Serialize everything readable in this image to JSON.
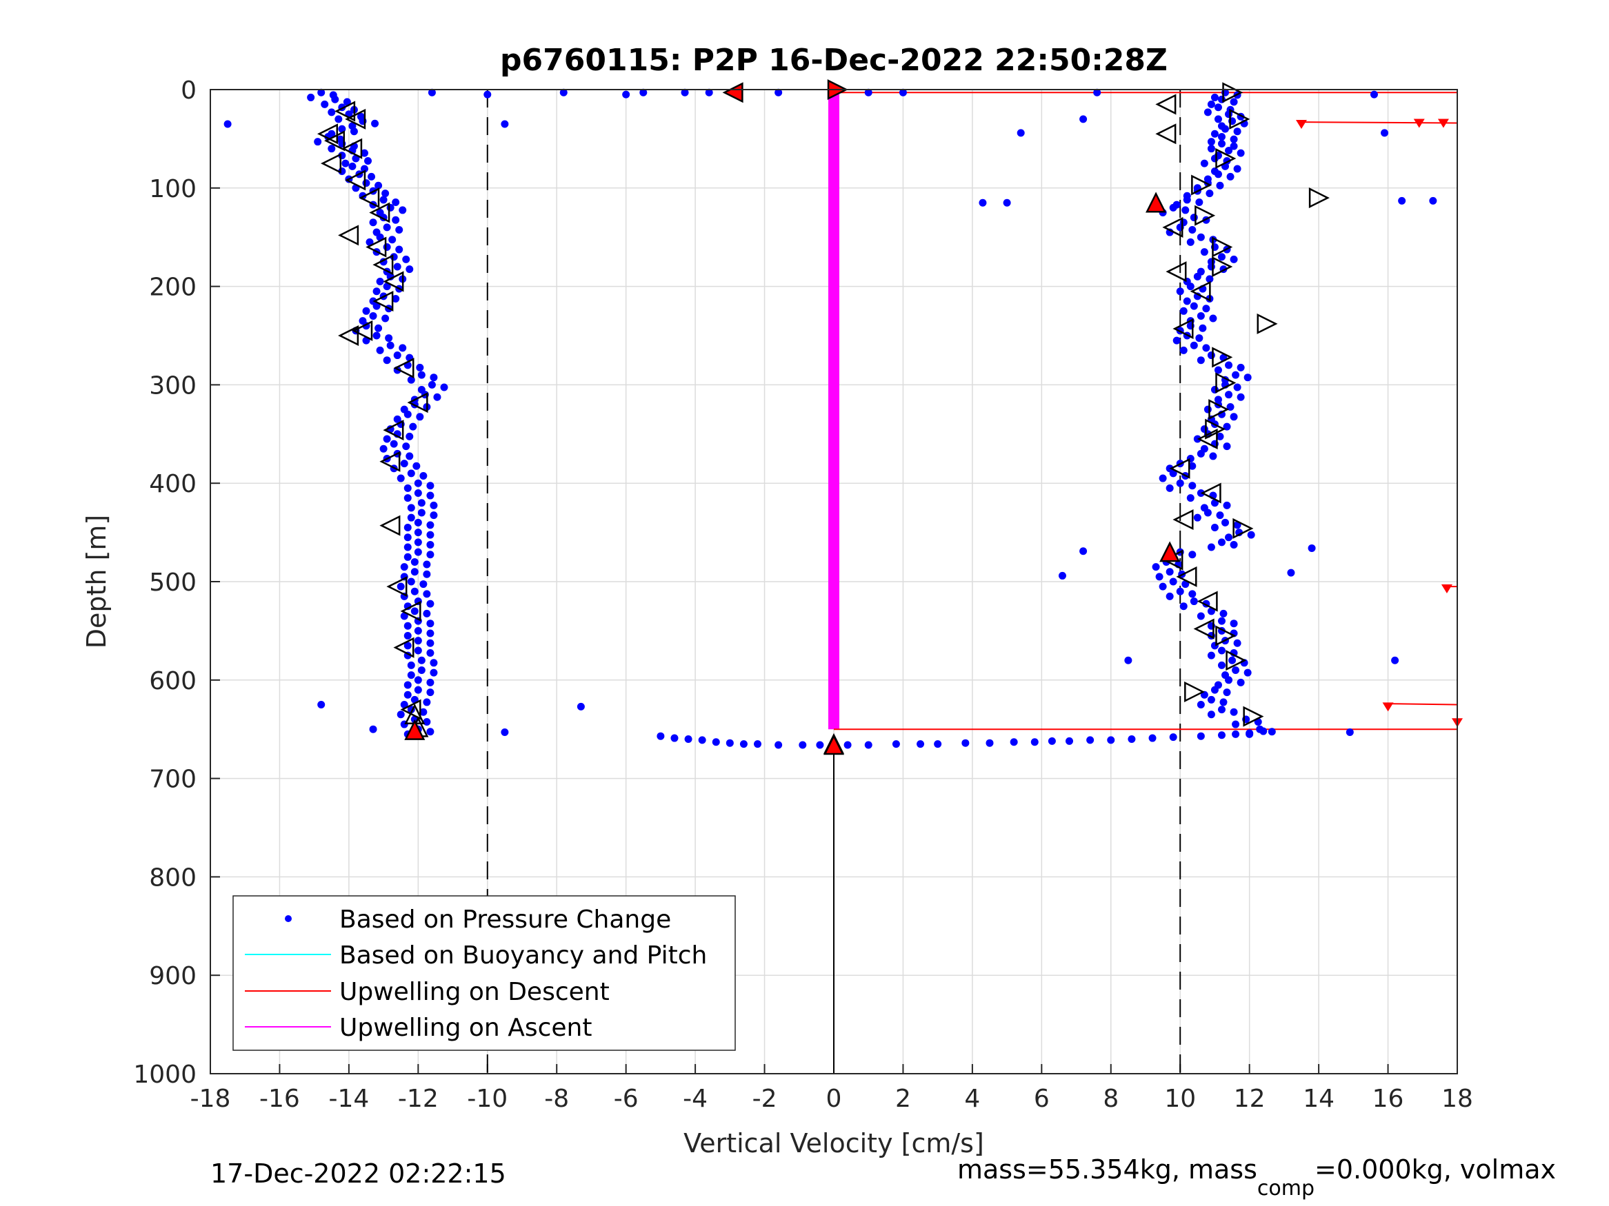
{
  "chart_data": {
    "type": "scatter",
    "title": "p6760115: P2P 16-Dec-2022 22:50:28Z",
    "xlabel": "Vertical Velocity [cm/s]",
    "ylabel": "Depth [m]",
    "xlim": [
      -18,
      18
    ],
    "ylim": [
      0,
      1000
    ],
    "y_reversed": true,
    "grid": true,
    "x_ticks": [
      "-18",
      "-16",
      "-14",
      "-12",
      "-10",
      "-8",
      "-6",
      "-4",
      "-2",
      "0",
      "2",
      "4",
      "6",
      "8",
      "10",
      "12",
      "14",
      "16",
      "18"
    ],
    "y_ticks": [
      "0",
      "100",
      "200",
      "300",
      "400",
      "500",
      "600",
      "700",
      "800",
      "900",
      "1000"
    ],
    "reference_lines": {
      "dashed_x": [
        -10,
        10
      ],
      "solid_x": 0,
      "solid_x_range": [
        665,
        1000
      ]
    },
    "legend": {
      "position": "bottom-left",
      "entries": [
        {
          "label": "Based on Pressure Change",
          "color": "#0000ff",
          "marker": "dot"
        },
        {
          "label": "Based on Buoyancy and Pitch",
          "color": "#00ffff",
          "marker": "line"
        },
        {
          "label": "Upwelling on Descent",
          "color": "#ff0000",
          "marker": "line"
        },
        {
          "label": "Upwelling on Ascent",
          "color": "#ff00ff",
          "marker": "line"
        }
      ]
    },
    "series": [
      {
        "name": "Based on Pressure Change",
        "color": "#0000ff",
        "descent_profile": [
          [
            -14.8,
            3
          ],
          [
            -14.4,
            10
          ],
          [
            -14.2,
            18
          ],
          [
            -14.0,
            25
          ],
          [
            -13.6,
            32
          ],
          [
            -14.2,
            40
          ],
          [
            -14.6,
            48
          ],
          [
            -14.2,
            55
          ],
          [
            -13.9,
            62
          ],
          [
            -13.8,
            70
          ],
          [
            -13.9,
            78
          ],
          [
            -13.7,
            86
          ],
          [
            -13.5,
            95
          ],
          [
            -13.3,
            103
          ],
          [
            -13.0,
            112
          ],
          [
            -12.8,
            120
          ],
          [
            -13.0,
            130
          ],
          [
            -12.9,
            140
          ],
          [
            -13.1,
            150
          ],
          [
            -12.9,
            160
          ],
          [
            -12.7,
            170
          ],
          [
            -12.6,
            180
          ],
          [
            -12.8,
            190
          ],
          [
            -12.9,
            200
          ],
          [
            -13.0,
            210
          ],
          [
            -13.2,
            220
          ],
          [
            -13.3,
            230
          ],
          [
            -13.5,
            240
          ],
          [
            -13.2,
            250
          ],
          [
            -12.8,
            260
          ],
          [
            -12.6,
            270
          ],
          [
            -12.3,
            280
          ],
          [
            -11.9,
            290
          ],
          [
            -11.6,
            300
          ],
          [
            -11.8,
            310
          ],
          [
            -12.1,
            320
          ],
          [
            -12.3,
            330
          ],
          [
            -12.5,
            340
          ],
          [
            -12.6,
            350
          ],
          [
            -12.7,
            360
          ],
          [
            -12.6,
            370
          ],
          [
            -12.4,
            380
          ],
          [
            -12.2,
            390
          ],
          [
            -12.0,
            400
          ],
          [
            -12.0,
            410
          ],
          [
            -11.9,
            420
          ],
          [
            -11.9,
            430
          ],
          [
            -12.0,
            440
          ],
          [
            -12.0,
            450
          ],
          [
            -12.0,
            460
          ],
          [
            -12.0,
            470
          ],
          [
            -12.1,
            480
          ],
          [
            -12.1,
            490
          ],
          [
            -12.2,
            500
          ],
          [
            -12.1,
            510
          ],
          [
            -12.0,
            520
          ],
          [
            -12.1,
            530
          ],
          [
            -12.0,
            540
          ],
          [
            -12.0,
            550
          ],
          [
            -12.0,
            560
          ],
          [
            -12.0,
            570
          ],
          [
            -11.9,
            580
          ],
          [
            -11.9,
            590
          ],
          [
            -12.0,
            600
          ],
          [
            -12.0,
            610
          ],
          [
            -12.1,
            620
          ],
          [
            -12.2,
            630
          ],
          [
            -12.1,
            640
          ],
          [
            -12.0,
            650
          ]
        ],
        "ascent_profile": [
          [
            11.3,
            3
          ],
          [
            11.2,
            10
          ],
          [
            11.1,
            18
          ],
          [
            11.4,
            25
          ],
          [
            11.5,
            32
          ],
          [
            11.3,
            40
          ],
          [
            11.2,
            48
          ],
          [
            11.2,
            55
          ],
          [
            11.4,
            62
          ],
          [
            11.0,
            70
          ],
          [
            11.3,
            78
          ],
          [
            11.1,
            86
          ],
          [
            10.8,
            95
          ],
          [
            10.5,
            103
          ],
          [
            10.2,
            112
          ],
          [
            9.8,
            120
          ],
          [
            10.4,
            130
          ],
          [
            10.0,
            140
          ],
          [
            10.6,
            150
          ],
          [
            11.0,
            160
          ],
          [
            11.2,
            170
          ],
          [
            10.9,
            180
          ],
          [
            10.5,
            190
          ],
          [
            10.3,
            200
          ],
          [
            10.5,
            210
          ],
          [
            10.4,
            220
          ],
          [
            10.6,
            230
          ],
          [
            10.3,
            240
          ],
          [
            10.2,
            250
          ],
          [
            10.4,
            260
          ],
          [
            10.9,
            270
          ],
          [
            11.4,
            280
          ],
          [
            11.6,
            290
          ],
          [
            11.3,
            300
          ],
          [
            11.4,
            310
          ],
          [
            11.1,
            320
          ],
          [
            11.2,
            330
          ],
          [
            11.0,
            340
          ],
          [
            10.8,
            350
          ],
          [
            11.0,
            360
          ],
          [
            10.6,
            370
          ],
          [
            10.0,
            380
          ],
          [
            9.8,
            390
          ],
          [
            10.0,
            400
          ],
          [
            10.6,
            410
          ],
          [
            11.0,
            420
          ],
          [
            10.8,
            430
          ],
          [
            11.3,
            440
          ],
          [
            11.7,
            450
          ],
          [
            11.2,
            460
          ],
          [
            10.0,
            470
          ],
          [
            9.6,
            480
          ],
          [
            9.7,
            490
          ],
          [
            9.8,
            500
          ],
          [
            10.0,
            510
          ],
          [
            10.4,
            520
          ],
          [
            10.9,
            530
          ],
          [
            11.2,
            540
          ],
          [
            11.2,
            550
          ],
          [
            11.3,
            560
          ],
          [
            11.2,
            570
          ],
          [
            11.5,
            580
          ],
          [
            11.6,
            590
          ],
          [
            11.4,
            600
          ],
          [
            11.0,
            610
          ],
          [
            10.9,
            620
          ],
          [
            11.2,
            630
          ],
          [
            11.9,
            640
          ],
          [
            12.3,
            650
          ]
        ],
        "scatter": [
          [
            -17.5,
            35
          ],
          [
            -9.5,
            35
          ],
          [
            -11.6,
            3
          ],
          [
            -10.0,
            5
          ],
          [
            -7.8,
            3
          ],
          [
            -6.0,
            5
          ],
          [
            -5.5,
            3
          ],
          [
            -4.3,
            3
          ],
          [
            -3.6,
            3
          ],
          [
            -1.6,
            3
          ],
          [
            1.0,
            3
          ],
          [
            2.0,
            3
          ],
          [
            7.6,
            3
          ],
          [
            7.2,
            30
          ],
          [
            5.4,
            44
          ],
          [
            4.3,
            115
          ],
          [
            5.0,
            115
          ],
          [
            15.6,
            5
          ],
          [
            15.9,
            44
          ],
          [
            16.4,
            113
          ],
          [
            17.3,
            113
          ],
          [
            13.8,
            466
          ],
          [
            7.2,
            469
          ],
          [
            6.6,
            494
          ],
          [
            13.2,
            491
          ],
          [
            8.5,
            580
          ],
          [
            16.2,
            580
          ],
          [
            -14.8,
            625
          ],
          [
            -7.3,
            627
          ],
          [
            -13.3,
            650
          ],
          [
            -9.5,
            653
          ],
          [
            14.9,
            653
          ]
        ],
        "bottom_turn": [
          [
            -5.0,
            657
          ],
          [
            -4.6,
            659
          ],
          [
            -4.2,
            660
          ],
          [
            -3.8,
            661
          ],
          [
            -3.4,
            663
          ],
          [
            -3.0,
            664
          ],
          [
            -2.6,
            665
          ],
          [
            -2.2,
            665
          ],
          [
            -1.6,
            666
          ],
          [
            -0.9,
            666
          ],
          [
            -0.4,
            666
          ],
          [
            0.4,
            666
          ],
          [
            1.0,
            666
          ],
          [
            1.8,
            665
          ],
          [
            2.5,
            665
          ],
          [
            3.0,
            665
          ],
          [
            3.8,
            664
          ],
          [
            4.5,
            664
          ],
          [
            5.2,
            663
          ],
          [
            5.8,
            663
          ],
          [
            6.3,
            662
          ],
          [
            6.8,
            662
          ],
          [
            7.4,
            661
          ],
          [
            8.0,
            661
          ],
          [
            8.6,
            660
          ],
          [
            9.2,
            659
          ],
          [
            9.8,
            658
          ],
          [
            10.6,
            657
          ],
          [
            11.2,
            656
          ],
          [
            11.6,
            655
          ],
          [
            12.0,
            654
          ],
          [
            12.4,
            652
          ]
        ]
      },
      {
        "name": "Based on Buoyancy and Pitch",
        "color": "#00ffff",
        "values": []
      },
      {
        "name": "Upwelling on Descent",
        "color": "#ff0000",
        "lines": [
          {
            "y": [
              3,
              3
            ],
            "x": [
              0,
              18
            ]
          },
          {
            "y": [
              33,
              34
            ],
            "x": [
              13.5,
              18
            ]
          },
          {
            "y": [
              505,
              505
            ],
            "x": [
              17.8,
              18
            ]
          },
          {
            "y": [
              624,
              625
            ],
            "x": [
              16.0,
              18
            ]
          },
          {
            "y": [
              650,
              650
            ],
            "x": [
              0,
              18
            ]
          }
        ],
        "markers": [
          [
            13.5,
            35
          ],
          [
            16.9,
            34
          ],
          [
            17.6,
            34
          ],
          [
            17.7,
            507
          ],
          [
            16.0,
            627
          ],
          [
            18.0,
            643
          ]
        ]
      },
      {
        "name": "Upwelling on Ascent",
        "color": "#ff00ff",
        "lines": [
          {
            "y": [
              0,
              650
            ],
            "x": [
              0,
              0
            ]
          }
        ]
      }
    ],
    "triangle_markers": {
      "left_open": [
        [
          -14.1,
          22
        ],
        [
          -13.8,
          30
        ],
        [
          -14.6,
          45
        ],
        [
          -14.4,
          52
        ],
        [
          -14.5,
          75
        ],
        [
          -13.9,
          60
        ],
        [
          -13.8,
          92
        ],
        [
          -13.4,
          110
        ],
        [
          -13.1,
          125
        ],
        [
          -14.0,
          148
        ],
        [
          -13.2,
          160
        ],
        [
          -13.0,
          178
        ],
        [
          -12.7,
          195
        ],
        [
          -13.0,
          215
        ],
        [
          -14.0,
          250
        ],
        [
          -13.6,
          245
        ],
        [
          -12.4,
          283
        ],
        [
          -12.0,
          318
        ],
        [
          -12.7,
          346
        ],
        [
          -12.8,
          378
        ],
        [
          -12.8,
          443
        ],
        [
          -12.6,
          505
        ],
        [
          -12.2,
          530
        ],
        [
          -12.4,
          567
        ],
        [
          -12.2,
          630
        ],
        [
          9.6,
          45
        ],
        [
          9.9,
          185
        ],
        [
          10.1,
          243
        ],
        [
          10.0,
          385
        ],
        [
          10.1,
          437
        ],
        [
          9.8,
          478
        ],
        [
          10.2,
          495
        ],
        [
          10.8,
          520
        ],
        [
          10.7,
          548
        ],
        [
          10.8,
          355
        ],
        [
          10.9,
          410
        ],
        [
          10.6,
          205
        ],
        [
          9.8,
          140
        ],
        [
          9.6,
          15
        ]
      ],
      "right_open": [
        [
          11.5,
          3
        ],
        [
          11.7,
          30
        ],
        [
          11.3,
          70
        ],
        [
          10.6,
          97
        ],
        [
          10.7,
          128
        ],
        [
          11.2,
          160
        ],
        [
          11.2,
          180
        ],
        [
          14.0,
          110
        ],
        [
          12.5,
          238
        ],
        [
          11.2,
          272
        ],
        [
          11.3,
          298
        ],
        [
          11.1,
          325
        ],
        [
          11.0,
          345
        ],
        [
          11.8,
          446
        ],
        [
          10.4,
          612
        ],
        [
          11.6,
          580
        ],
        [
          12.1,
          637
        ],
        [
          11.3,
          555
        ]
      ],
      "up_open": [
        [
          -12.0,
          648
        ],
        [
          -12.1,
          635
        ],
        [
          0,
          665
        ]
      ],
      "red_filled": [
        [
          -2.9,
          3
        ],
        [
          0.1,
          0
        ],
        [
          9.3,
          115
        ],
        [
          9.7,
          470
        ],
        [
          -12.1,
          651
        ],
        [
          0,
          666
        ]
      ]
    }
  },
  "footer": {
    "timestamp": "17-Dec-2022 02:22:15",
    "mass_prefix": "mass=55.354kg, mass",
    "mass_subscript": "comp",
    "mass_suffix": "=0.000kg, volmax"
  }
}
